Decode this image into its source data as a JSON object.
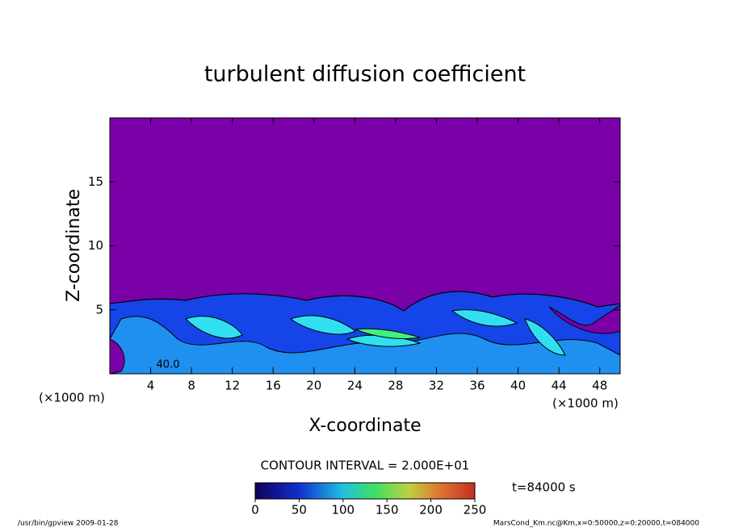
{
  "chart_data": {
    "type": "contour",
    "title": "turbulent diffusion coefficient",
    "xlabel": "X-coordinate",
    "ylabel": "Z-coordinate",
    "x_unit": "(×1000 m)",
    "y_unit": "(×1000 m)",
    "xlim": [
      0,
      50
    ],
    "xticks": [
      4,
      8,
      12,
      16,
      20,
      24,
      28,
      32,
      36,
      40,
      44,
      48
    ],
    "ylim": [
      0,
      20
    ],
    "yticks": [
      5,
      10,
      15
    ],
    "contour_label": "40.0",
    "contour_interval": "CONTOUR INTERVAL = 2.000E+01",
    "time_label": "t=84000 s",
    "colorbar": {
      "lim": [
        0,
        250
      ],
      "ticks": [
        0,
        50,
        100,
        150,
        200,
        250
      ]
    },
    "footer_left": "/usr/bin/gpview  2009-01-28",
    "footer_right": "MarsCond_Km.nc@Km,x=0:50000,z=0:20000,t=084000"
  }
}
